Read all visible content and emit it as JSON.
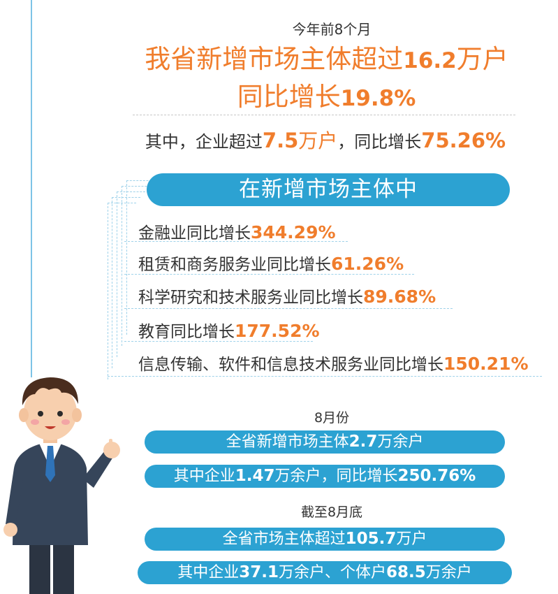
{
  "header": {
    "eyebrow": "今年前8个月",
    "headline1_pre": "我省新增市场主体超过",
    "headline1_num": "16.2",
    "headline1_unit": "万户",
    "headline2_pre": "同比增长",
    "headline2_num": "19.8%",
    "sub_pre": "其中，企业超过",
    "sub_num1": "7.5",
    "sub_unit": "万户",
    "sub_mid": "，同比增长",
    "sub_num2": "75.26%"
  },
  "industries": {
    "title": "在新增市场主体中",
    "items": [
      {
        "label": "金融业同比增长",
        "value": "344.29%"
      },
      {
        "label": "租赁和商务服务业同比增长",
        "value": "61.26%"
      },
      {
        "label": "科学研究和技术服务业同比增长",
        "value": "89.68%"
      },
      {
        "label": "教育同比增长",
        "value": "177.52%"
      },
      {
        "label": "信息传输、软件和信息技术服务业同比增长",
        "value": "150.21%"
      }
    ]
  },
  "august": {
    "title": "8月份",
    "line1_pre": "全省新增市场主体",
    "line1_num": "2.7",
    "line1_post": "万余户",
    "line2_pre": "其中企业",
    "line2_num": "1.47",
    "line2_mid": "万余户，同比增长",
    "line2_num2": "250.76%"
  },
  "end_august": {
    "title": "截至8月底",
    "line1_pre": "全省市场主体超过",
    "line1_num": "105.7",
    "line1_post": "万户",
    "line2_pre": "其中企业",
    "line2_num": "37.1",
    "line2_mid": "万余户、个体户",
    "line2_num2": "68.5",
    "line2_post": "万余户"
  },
  "colors": {
    "accent": "#f07d2c",
    "blue": "#2ca2d2",
    "line": "#7dc3e6"
  },
  "illustration": "cartoon-businessman-icon"
}
